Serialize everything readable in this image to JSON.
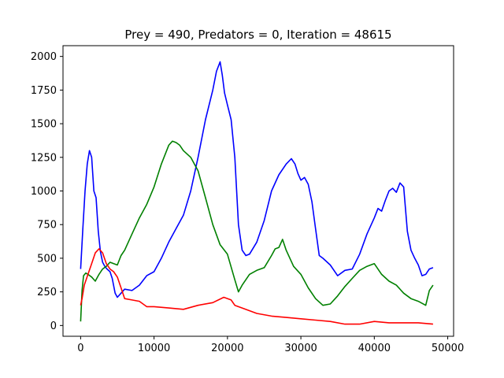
{
  "chart_data": {
    "type": "line",
    "title": "Prey = 490, Predators = 0, Iteration = 48615",
    "xlabel": "",
    "ylabel": "",
    "xlim": [
      -2400,
      50800
    ],
    "ylim": [
      -80,
      2080
    ],
    "xticks": [
      0,
      10000,
      20000,
      30000,
      40000,
      50000
    ],
    "yticks": [
      0,
      250,
      500,
      750,
      1000,
      1250,
      1500,
      1750,
      2000
    ],
    "grid": false,
    "legend": "none",
    "series": [
      {
        "color": "#0000ff",
        "x": [
          0,
          300,
          600,
          900,
          1200,
          1500,
          1800,
          2100,
          2400,
          2700,
          3000,
          3300,
          3600,
          4000,
          4300,
          4700,
          5000,
          5500,
          6000,
          7000,
          8000,
          9000,
          10000,
          11000,
          12000,
          13000,
          14000,
          15000,
          16000,
          17000,
          18000,
          18500,
          19000,
          19300,
          19600,
          20000,
          20500,
          21000,
          21500,
          22000,
          22500,
          23000,
          24000,
          25000,
          26000,
          27000,
          28000,
          28700,
          29200,
          29600,
          30000,
          30500,
          31000,
          31500,
          32000,
          32500,
          33000,
          34000,
          35000,
          36000,
          37000,
          38000,
          39000,
          40000,
          40500,
          41000,
          41500,
          42000,
          42500,
          43000,
          43500,
          44000,
          44500,
          45000,
          45500,
          46000,
          46500,
          47000,
          47500,
          48000
        ],
        "values": [
          420,
          720,
          1000,
          1200,
          1300,
          1250,
          1000,
          950,
          700,
          550,
          470,
          440,
          420,
          400,
          350,
          240,
          210,
          240,
          270,
          260,
          300,
          370,
          400,
          500,
          620,
          720,
          820,
          1000,
          1250,
          1530,
          1750,
          1890,
          1960,
          1860,
          1730,
          1640,
          1530,
          1250,
          750,
          560,
          520,
          530,
          620,
          780,
          1000,
          1120,
          1200,
          1240,
          1200,
          1130,
          1080,
          1100,
          1050,
          920,
          720,
          520,
          500,
          450,
          370,
          410,
          420,
          530,
          680,
          800,
          870,
          850,
          930,
          1000,
          1020,
          990,
          1060,
          1030,
          700,
          560,
          500,
          450,
          370,
          380,
          420,
          430
        ]
      },
      {
        "color": "#008000",
        "x": [
          0,
          200,
          400,
          700,
          1000,
          1500,
          2000,
          2500,
          3000,
          3500,
          4000,
          4500,
          5000,
          5500,
          6000,
          7000,
          8000,
          9000,
          10000,
          11000,
          12000,
          12500,
          13000,
          13500,
          14000,
          15000,
          16000,
          17000,
          18000,
          19000,
          20000,
          21000,
          21500,
          22000,
          23000,
          24000,
          25000,
          26000,
          26500,
          27000,
          27500,
          28000,
          29000,
          30000,
          31000,
          32000,
          33000,
          34000,
          35000,
          36000,
          37000,
          38000,
          39000,
          40000,
          41000,
          42000,
          43000,
          44000,
          45000,
          46000,
          47000,
          47500,
          48000
        ],
        "values": [
          30,
          260,
          370,
          390,
          380,
          360,
          330,
          380,
          420,
          440,
          470,
          460,
          450,
          520,
          560,
          680,
          800,
          900,
          1030,
          1200,
          1340,
          1370,
          1360,
          1340,
          1300,
          1250,
          1150,
          950,
          750,
          600,
          530,
          340,
          250,
          300,
          380,
          410,
          430,
          520,
          570,
          580,
          640,
          560,
          440,
          380,
          280,
          200,
          150,
          160,
          220,
          290,
          350,
          410,
          440,
          460,
          380,
          330,
          300,
          240,
          200,
          180,
          150,
          260,
          300
        ]
      },
      {
        "color": "#ff0000",
        "x": [
          0,
          200,
          500,
          1000,
          1500,
          2000,
          2500,
          3000,
          3500,
          4000,
          4500,
          5000,
          5500,
          6000,
          7000,
          8000,
          9000,
          10000,
          12000,
          14000,
          16000,
          18000,
          19500,
          20500,
          21000,
          22000,
          24000,
          26000,
          28000,
          30000,
          32000,
          34000,
          36000,
          38000,
          40000,
          42000,
          44000,
          46000,
          48000
        ],
        "values": [
          150,
          200,
          300,
          380,
          460,
          540,
          570,
          540,
          460,
          420,
          400,
          360,
          280,
          200,
          190,
          180,
          140,
          140,
          130,
          120,
          150,
          170,
          210,
          190,
          150,
          130,
          90,
          70,
          60,
          50,
          40,
          30,
          10,
          10,
          30,
          20,
          20,
          20,
          10
        ]
      }
    ]
  }
}
